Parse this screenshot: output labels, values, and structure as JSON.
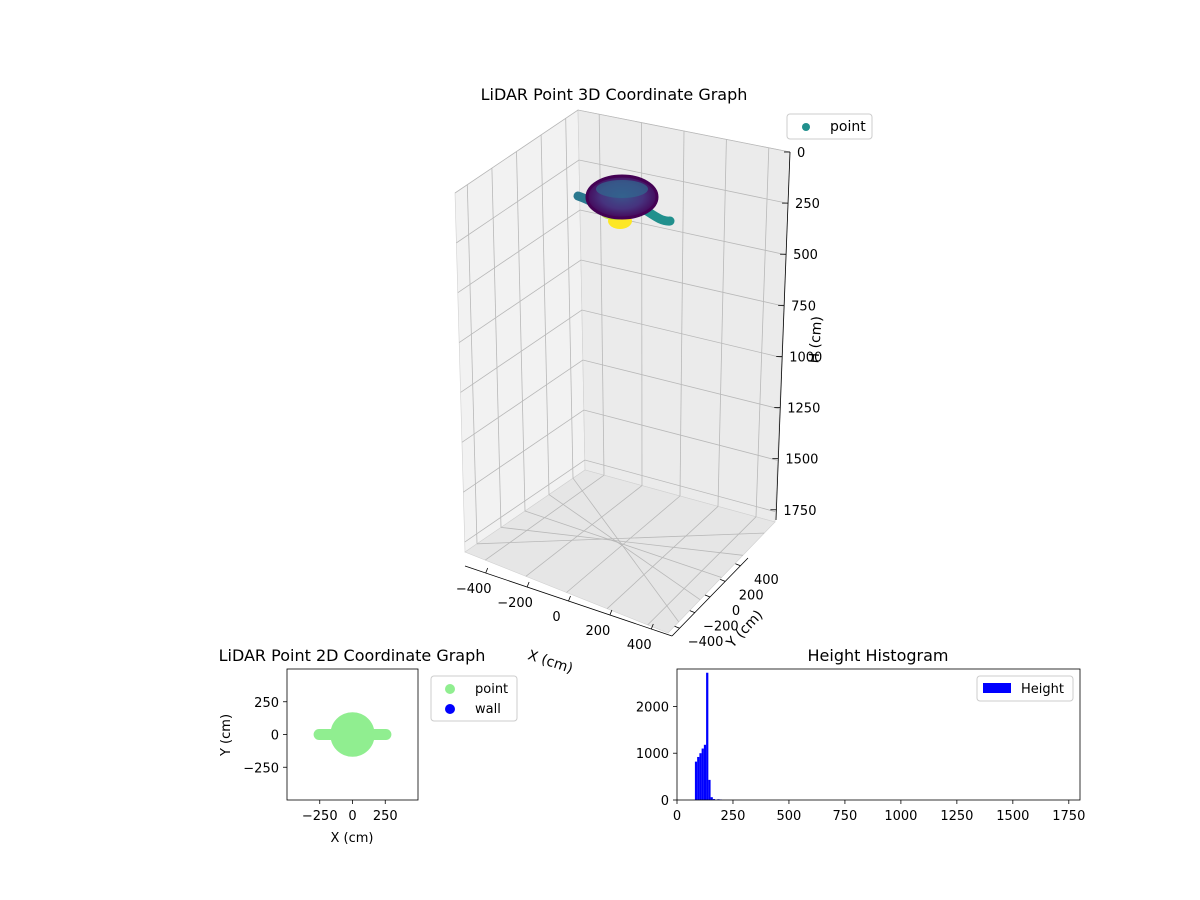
{
  "chart_data": [
    {
      "type": "scatter3d",
      "title": "LiDAR Point 3D Coordinate Graph",
      "xlabel": "X (cm)",
      "ylabel": "Y (cm)",
      "zlabel": "H (cm)",
      "xlim": [
        -500,
        500
      ],
      "ylim": [
        -500,
        500
      ],
      "zlim": [
        0,
        1800
      ],
      "z_inverted": true,
      "x_ticks": [
        "−400",
        "−200",
        "0",
        "200",
        "400"
      ],
      "y_ticks": [
        "−400",
        "−200",
        "0",
        "200",
        "400"
      ],
      "z_ticks": [
        "0",
        "250",
        "500",
        "750",
        "1000",
        "1250",
        "1500",
        "1750"
      ],
      "legend": {
        "entries": [
          "point"
        ],
        "placement": "top-right"
      },
      "colormap": "viridis",
      "grid": true,
      "series": [
        {
          "name": "point",
          "shape": "circular bowl with two side arms",
          "center": [
            0,
            0
          ],
          "radius": 130,
          "h_range": [
            80,
            200
          ],
          "arm_x_extent": [
            -280,
            280
          ]
        }
      ]
    },
    {
      "type": "scatter",
      "title": "LiDAR Point 2D Coordinate Graph",
      "xlabel": "X (cm)",
      "ylabel": "Y (cm)",
      "xlim": [
        -500,
        500
      ],
      "ylim": [
        -500,
        500
      ],
      "x_ticks": [
        "−250",
        "0",
        "250"
      ],
      "y_ticks": [
        "250",
        "0",
        "−250"
      ],
      "legend": {
        "entries": [
          "point",
          "wall"
        ],
        "placement": "right-outside"
      },
      "series": [
        {
          "name": "point",
          "color": "#90ee90",
          "shape": "disk with arms",
          "center": [
            0,
            0
          ],
          "radius": 170,
          "arm_x_extent": [
            -255,
            255
          ]
        },
        {
          "name": "wall",
          "color": "#0000ff",
          "points": []
        }
      ]
    },
    {
      "type": "bar",
      "title": "Height Histogram",
      "legend": {
        "entries": [
          "Height"
        ],
        "placement": "top-right"
      },
      "color": "#0000ff",
      "xlim": [
        0,
        1800
      ],
      "ylim": [
        0,
        2800
      ],
      "x_ticks": [
        "0",
        "250",
        "500",
        "750",
        "1000",
        "1250",
        "1500",
        "1750"
      ],
      "y_ticks": [
        "0",
        "1000",
        "2000"
      ],
      "bin_width": 10,
      "bins": [
        {
          "x": 80,
          "value": 820
        },
        {
          "x": 90,
          "value": 920
        },
        {
          "x": 100,
          "value": 1000
        },
        {
          "x": 110,
          "value": 1100
        },
        {
          "x": 120,
          "value": 1180
        },
        {
          "x": 130,
          "value": 2720
        },
        {
          "x": 140,
          "value": 430
        },
        {
          "x": 150,
          "value": 60
        },
        {
          "x": 160,
          "value": 20
        },
        {
          "x": 180,
          "value": 15
        },
        {
          "x": 190,
          "value": 10
        }
      ]
    }
  ]
}
